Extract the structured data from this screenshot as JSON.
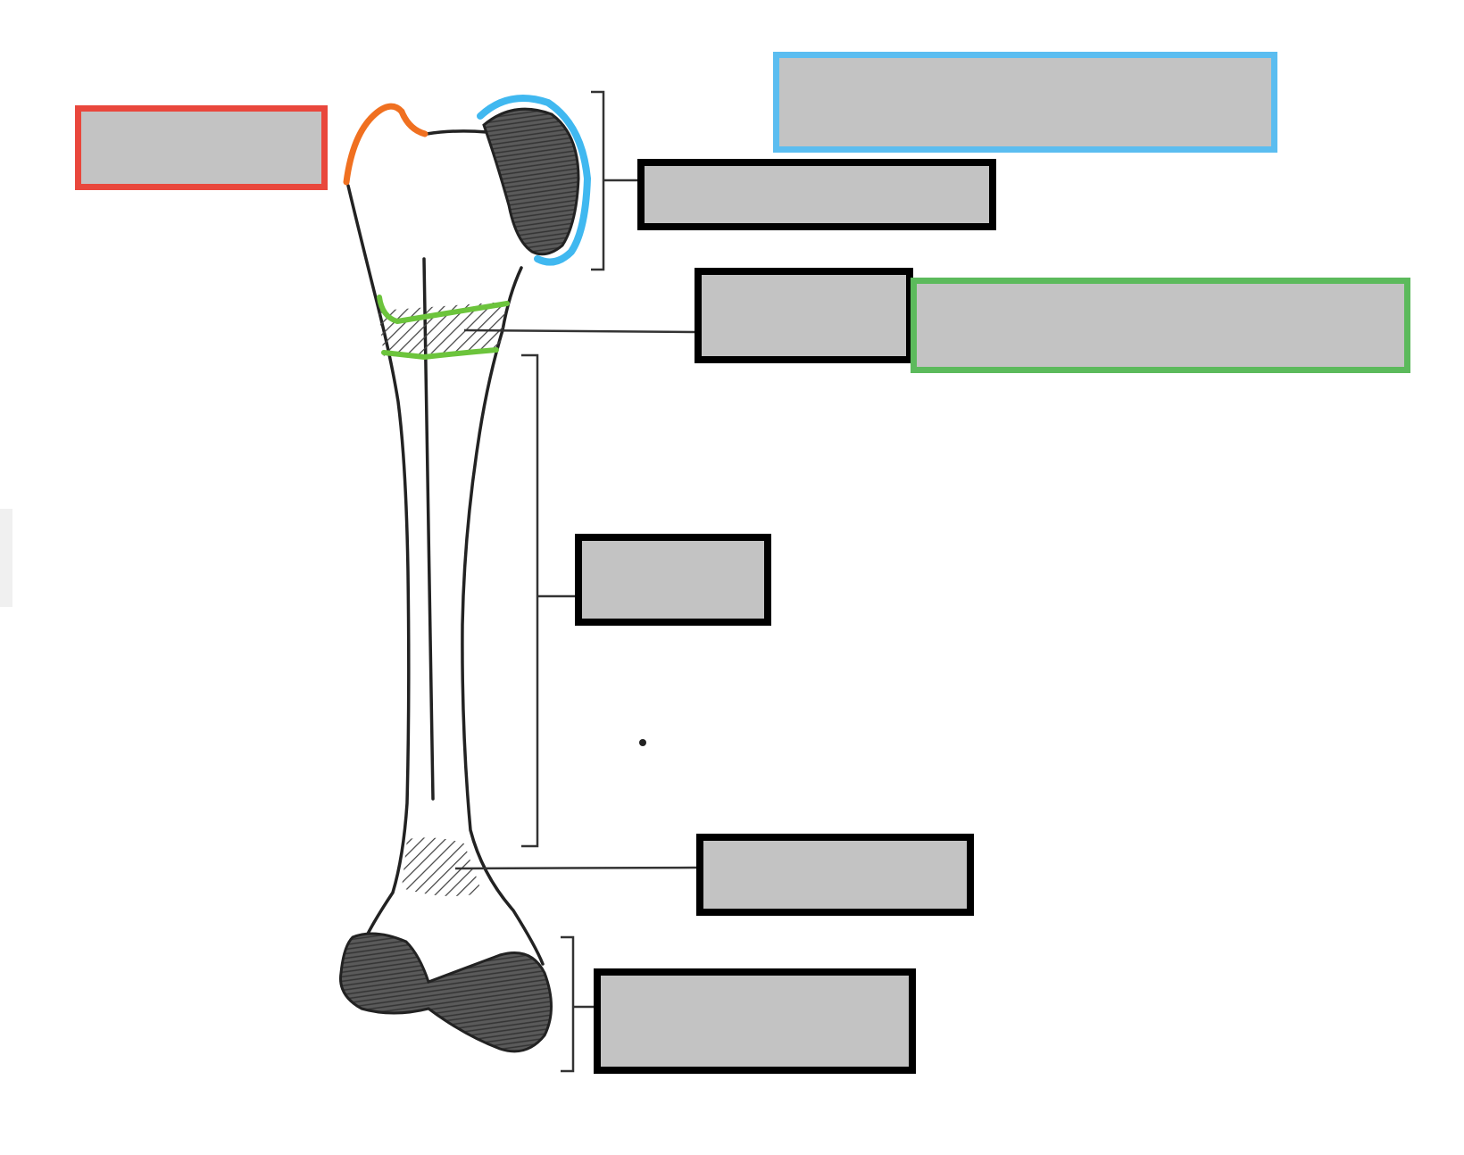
{
  "diagram": {
    "subject": "long bone",
    "label_boxes": [
      {
        "id": "box-top-left",
        "text": "",
        "border_color": "#e9473c"
      },
      {
        "id": "box-top-right-blue",
        "text": "",
        "border_color": "#5bbdf0"
      },
      {
        "id": "box-proximal",
        "text": "",
        "border_color": "#000000"
      },
      {
        "id": "box-growth-plate",
        "text": "",
        "border_color": "#000000"
      },
      {
        "id": "box-green",
        "text": "",
        "border_color": "#5cba5c"
      },
      {
        "id": "box-shaft",
        "text": "",
        "border_color": "#000000"
      },
      {
        "id": "box-distal-line",
        "text": "",
        "border_color": "#000000"
      },
      {
        "id": "box-distal",
        "text": "",
        "border_color": "#000000"
      }
    ],
    "colors": {
      "box_fill": "#c3c3c3",
      "outline": "#222222",
      "cartilage_shading": "#4a4a4a",
      "orange_highlight": "#f07020",
      "blue_highlight": "#40b8f0",
      "green_highlight": "#6cc43c"
    }
  }
}
